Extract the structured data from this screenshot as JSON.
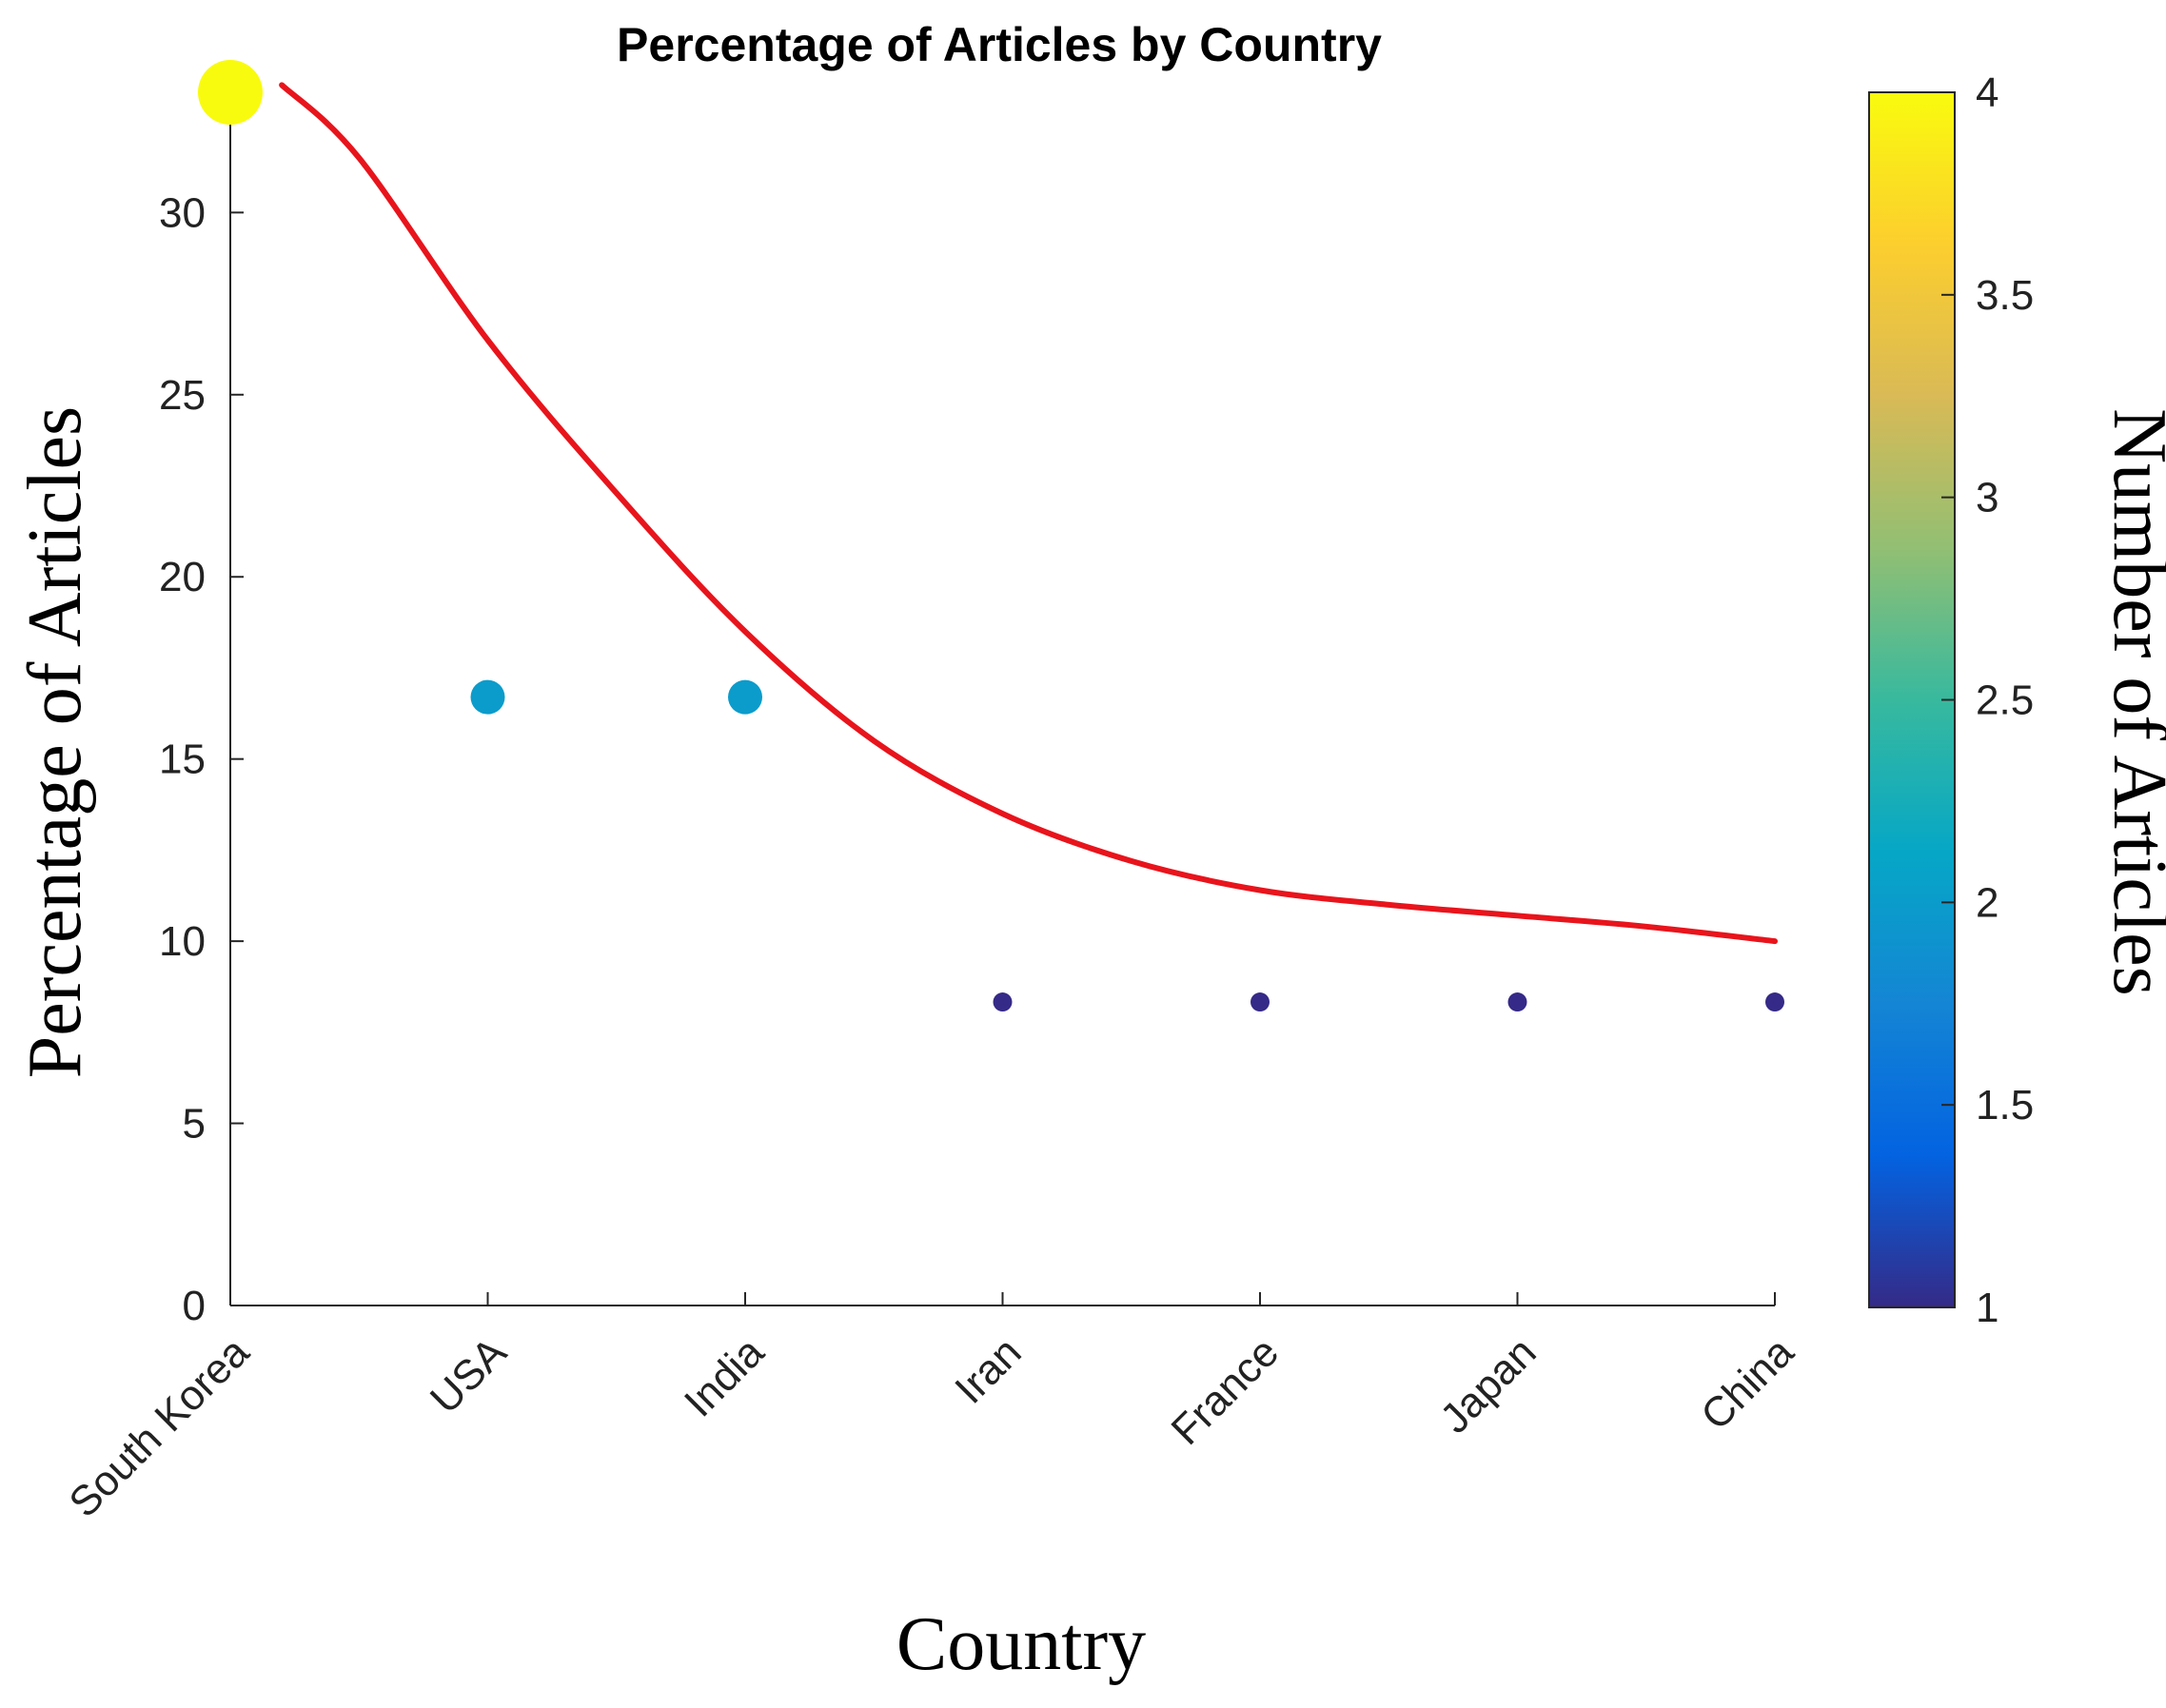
{
  "chart_data": {
    "type": "scatter",
    "title": "Percentage of Articles by Country",
    "xlabel": "Country",
    "ylabel": "Percentage of Articles",
    "categories": [
      "South Korea",
      "USA",
      "India",
      "Iran",
      "France",
      "Japan",
      "China"
    ],
    "series": [
      {
        "kind": "scatter",
        "values": [
          33.3,
          16.7,
          16.7,
          8.33,
          8.33,
          8.33,
          8.33
        ],
        "counts": [
          4,
          2,
          2,
          1,
          1,
          1,
          1
        ]
      },
      {
        "kind": "line",
        "color": "#e8141c",
        "x": [
          0.2,
          0.5,
          1.0,
          1.5,
          2.0,
          2.5,
          3.0,
          3.5,
          4.0,
          4.5,
          5.0,
          5.5,
          6.0
        ],
        "values": [
          33.5,
          31.5,
          26.5,
          22.3,
          18.5,
          15.5,
          13.5,
          12.2,
          11.4,
          11.0,
          10.7,
          10.4,
          10.0
        ]
      }
    ],
    "ylim": [
      0,
      33.3
    ],
    "yticks": [
      0,
      5,
      10,
      15,
      20,
      25,
      30
    ],
    "grid": false,
    "colorbar": {
      "label": "Number of Articles",
      "range": [
        1,
        4
      ],
      "ticks": [
        "1",
        "1.5",
        "2",
        "2.5",
        "3",
        "3.5",
        "4"
      ],
      "colormap": "parula",
      "colors": [
        "#352a87",
        "#0363e1",
        "#1485d4",
        "#06a7c6",
        "#38b99e",
        "#92bf73",
        "#d9ba56",
        "#fcce2e",
        "#f9fb0e"
      ]
    }
  }
}
